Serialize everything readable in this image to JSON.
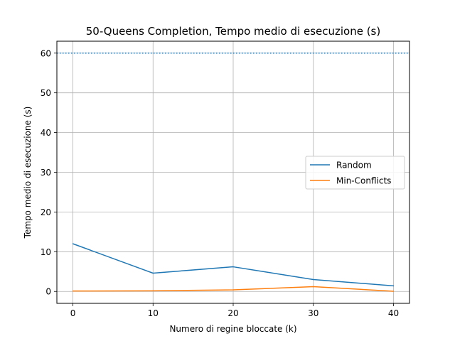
{
  "chart_data": {
    "type": "line",
    "title": "50-Queens Completion, Tempo medio di esecuzione (s)",
    "xlabel": "Numero di regine bloccate (k)",
    "ylabel": "Tempo medio di esecuzione (s)",
    "x": [
      0,
      10,
      20,
      30,
      40
    ],
    "xlim": [
      -2,
      42
    ],
    "ylim": [
      -3,
      63
    ],
    "xticks": [
      "0",
      "10",
      "20",
      "30",
      "40"
    ],
    "yticks": [
      "0",
      "10",
      "20",
      "30",
      "40",
      "50",
      "60"
    ],
    "grid": true,
    "legend_position": "right",
    "reference_line": {
      "y": 60,
      "style": "dotted",
      "color": "#1f77b4"
    },
    "series": [
      {
        "name": "Random",
        "color": "#1f77b4",
        "values": [
          12.0,
          4.6,
          6.2,
          3.0,
          1.4
        ]
      },
      {
        "name": "Min-Conflicts",
        "color": "#ff7f0e",
        "values": [
          0.1,
          0.15,
          0.4,
          1.2,
          0.05
        ]
      }
    ]
  }
}
